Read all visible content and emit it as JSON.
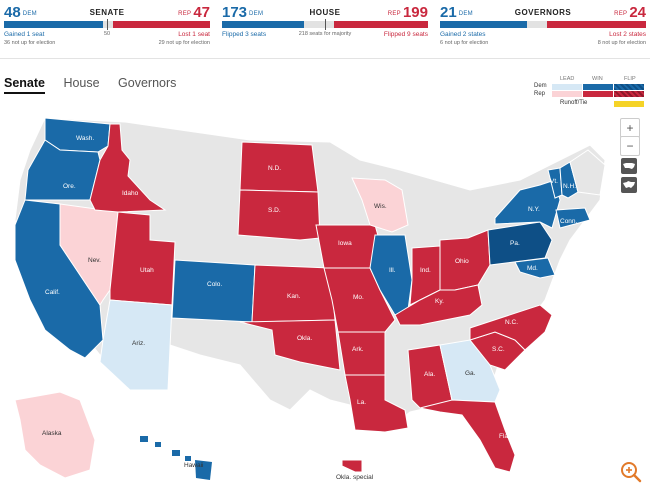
{
  "colors": {
    "dem_win": "#1a6aa8",
    "dem_lead": "#d6e8f5",
    "dem_flip": "#0e4f86",
    "rep_win": "#c9283e",
    "rep_lead": "#fbd3d6",
    "gray": "#e6e6e6",
    "runoff": "#f5d327"
  },
  "scoreboard": {
    "senate": {
      "title": "SENATE",
      "dem_count": "48",
      "dem_tag": "DEM",
      "rep_count": "47",
      "rep_tag": "REP",
      "dem_change": "Gained 1 seat",
      "dem_not_up": "36 not up for election",
      "rep_change": "Lost 1 seat",
      "rep_not_up": "29 not up for election",
      "majority_note": "50",
      "dem_share": 0.48,
      "rep_share": 0.47
    },
    "house": {
      "title": "HOUSE",
      "dem_count": "173",
      "dem_tag": "DEM",
      "rep_count": "199",
      "rep_tag": "REP",
      "dem_change": "Flipped 3 seats",
      "rep_change": "Flipped 9 seats",
      "majority_note": "218 seats for majority",
      "dem_share": 0.398,
      "rep_share": 0.457
    },
    "governors": {
      "title": "GOVERNORS",
      "dem_count": "21",
      "dem_tag": "DEM",
      "rep_count": "24",
      "rep_tag": "REP",
      "dem_change": "Gained 2 states",
      "dem_not_up": "6 not up for election",
      "rep_change": "Lost 2 states",
      "rep_not_up": "8 not up for election",
      "dem_share": 0.42,
      "rep_share": 0.48
    }
  },
  "tabs": [
    {
      "label": "Senate",
      "active": true
    },
    {
      "label": "House",
      "active": false
    },
    {
      "label": "Governors",
      "active": false
    }
  ],
  "legend": {
    "lead": "LEAD",
    "win": "WIN",
    "flip": "FLIP",
    "dem": "Dem",
    "rep": "Rep",
    "runoff": "Runoff/Tie"
  },
  "controls": {
    "zoom_in": "+",
    "zoom_out": "−"
  },
  "states": [
    {
      "label": "Wash.",
      "status": "dem_win"
    },
    {
      "label": "Ore.",
      "status": "dem_win"
    },
    {
      "label": "Calif.",
      "status": "dem_win"
    },
    {
      "label": "Nev.",
      "status": "rep_lead"
    },
    {
      "label": "Idaho",
      "status": "rep_win"
    },
    {
      "label": "Utah",
      "status": "rep_win"
    },
    {
      "label": "Ariz.",
      "status": "dem_lead"
    },
    {
      "label": "Colo.",
      "status": "dem_win"
    },
    {
      "label": "N.D.",
      "status": "rep_win"
    },
    {
      "label": "S.D.",
      "status": "rep_win"
    },
    {
      "label": "Kan.",
      "status": "rep_win"
    },
    {
      "label": "Okla.",
      "status": "rep_win"
    },
    {
      "label": "Iowa",
      "status": "rep_win"
    },
    {
      "label": "Mo.",
      "status": "rep_win"
    },
    {
      "label": "Ark.",
      "status": "rep_win"
    },
    {
      "label": "La.",
      "status": "rep_win"
    },
    {
      "label": "Wis.",
      "status": "rep_lead"
    },
    {
      "label": "Ill.",
      "status": "dem_win"
    },
    {
      "label": "Ind.",
      "status": "rep_win"
    },
    {
      "label": "Ohio",
      "status": "rep_win"
    },
    {
      "label": "Ky.",
      "status": "rep_win"
    },
    {
      "label": "Ala.",
      "status": "rep_win"
    },
    {
      "label": "Ga.",
      "status": "dem_lead"
    },
    {
      "label": "Fla.",
      "status": "rep_win"
    },
    {
      "label": "S.C.",
      "status": "rep_win"
    },
    {
      "label": "N.C.",
      "status": "rep_win"
    },
    {
      "label": "Pa.",
      "status": "dem_flip"
    },
    {
      "label": "N.Y.",
      "status": "dem_win"
    },
    {
      "label": "Vt.",
      "status": "dem_win"
    },
    {
      "label": "N.H.",
      "status": "dem_win"
    },
    {
      "label": "Conn.",
      "status": "dem_win"
    },
    {
      "label": "Md.",
      "status": "dem_win"
    },
    {
      "label": "Alaska",
      "status": "rep_lead"
    },
    {
      "label": "Hawaii",
      "status": "dem_win"
    },
    {
      "label": "Okla. special",
      "status": "rep_win"
    }
  ]
}
